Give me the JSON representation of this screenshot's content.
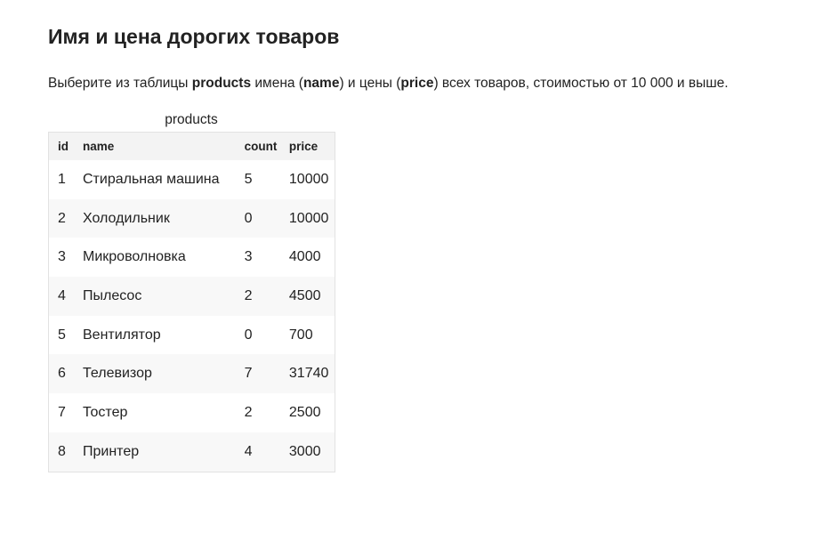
{
  "title": "Имя и цена дорогих товаров",
  "description": {
    "p1": "Выберите из таблицы ",
    "b1": "products",
    "p2": " имена (",
    "b2": "name",
    "p3": ") и цены (",
    "b3": "price",
    "p4": ") всех товаров, стоимостью от 10 000 и выше."
  },
  "table": {
    "caption": "products",
    "columns": [
      "id",
      "name",
      "count",
      "price"
    ],
    "rows": [
      [
        "1",
        "Стиральная машина",
        "5",
        "10000"
      ],
      [
        "2",
        "Холодильник",
        "0",
        "10000"
      ],
      [
        "3",
        "Микроволновка",
        "3",
        "4000"
      ],
      [
        "4",
        "Пылесос",
        "2",
        "4500"
      ],
      [
        "5",
        "Вентилятор",
        "0",
        "700"
      ],
      [
        "6",
        "Телевизор",
        "7",
        "31740"
      ],
      [
        "7",
        "Тостер",
        "2",
        "2500"
      ],
      [
        "8",
        "Принтер",
        "4",
        "3000"
      ]
    ]
  }
}
